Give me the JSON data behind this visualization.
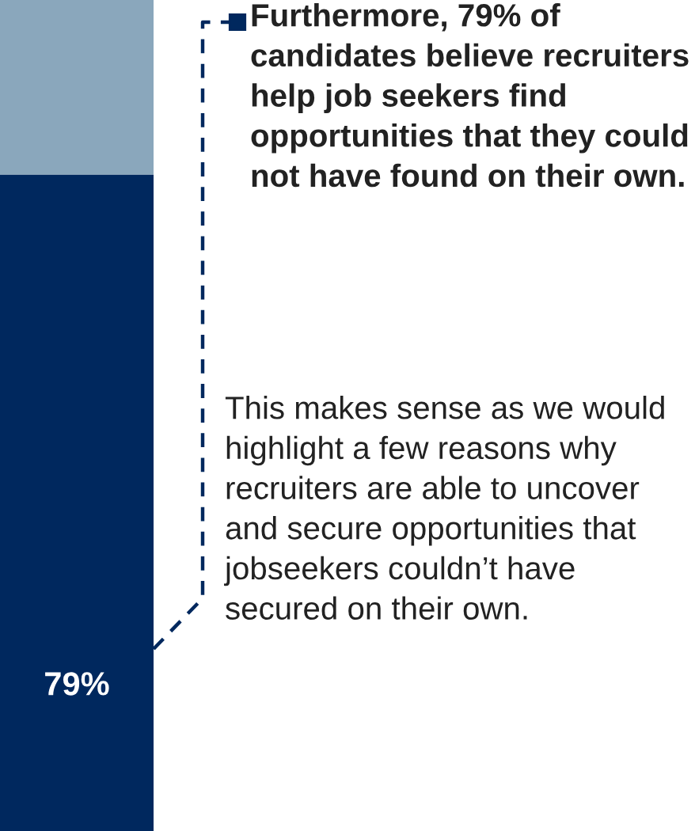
{
  "chart_data": {
    "type": "bar",
    "stacked": true,
    "categories": [
      null
    ],
    "series": [
      {
        "color": "#00285e",
        "values": [
          79
        ],
        "value_labels": [
          "79%"
        ]
      },
      {
        "color": "#8aa7bc",
        "values": [
          21
        ]
      }
    ],
    "annotations": [
      "Furthermore, 79% of candidates believe recruiters help job seekers find opportunities that they could not have found on their own.",
      "This makes sense as we would highlight a few reasons why recruiters are able to uncover and secure opportunities that jobseekers couldn’t have secured on their own."
    ]
  }
}
